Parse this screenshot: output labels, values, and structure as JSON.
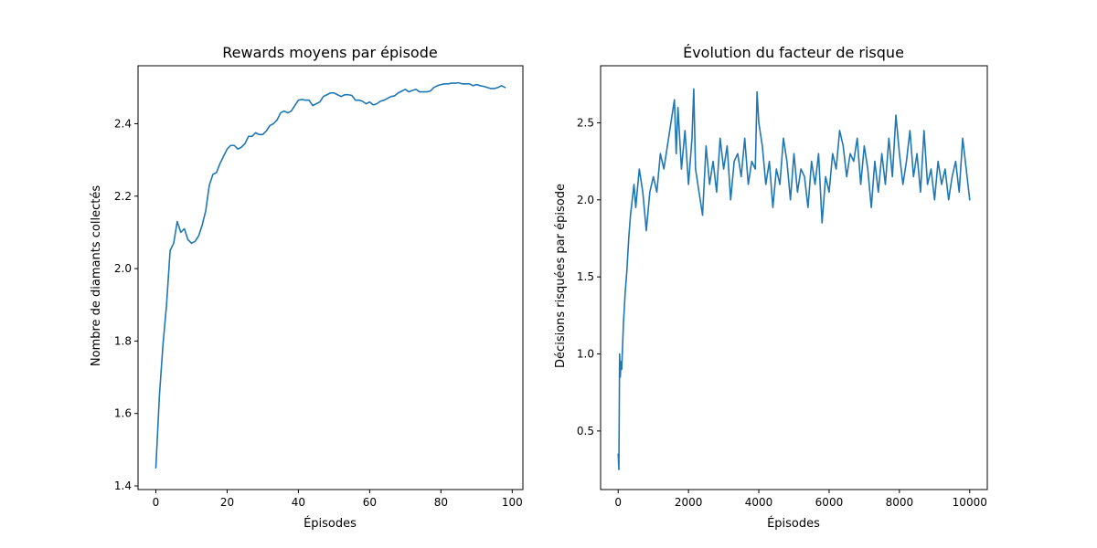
{
  "chart_data": [
    {
      "type": "line",
      "title": "Rewards moyens par épisode",
      "xlabel": "Épisodes",
      "ylabel": "Nombre de diamants collectés",
      "xlim": [
        -5,
        103
      ],
      "ylim": [
        1.39,
        2.56
      ],
      "xticks": [
        0,
        20,
        40,
        60,
        80,
        100
      ],
      "yticks": [
        1.4,
        1.6,
        1.8,
        2.0,
        2.2,
        2.4
      ],
      "ytick_labels": [
        "1.4",
        "1.6",
        "1.8",
        "2.0",
        "2.2",
        "2.4"
      ],
      "grid": false,
      "color": "#1f77b4",
      "series": [
        {
          "x": [
            0,
            1,
            2,
            3,
            4,
            5,
            6,
            7,
            8,
            9,
            10,
            11,
            12,
            13,
            14,
            15,
            16,
            17,
            18,
            19,
            20,
            21,
            22,
            23,
            24,
            25,
            26,
            27,
            28,
            29,
            30,
            31,
            32,
            33,
            34,
            35,
            36,
            37,
            38,
            39,
            40,
            41,
            42,
            43,
            44,
            45,
            46,
            47,
            48,
            49,
            50,
            51,
            52,
            53,
            54,
            55,
            56,
            57,
            58,
            59,
            60,
            61,
            62,
            63,
            64,
            65,
            66,
            67,
            68,
            69,
            70,
            71,
            72,
            73,
            74,
            75,
            76,
            77,
            78,
            79,
            80,
            81,
            82,
            83,
            84,
            85,
            86,
            87,
            88,
            89,
            90,
            91,
            92,
            93,
            94,
            95,
            96,
            97,
            98
          ],
          "y": [
            1.45,
            1.65,
            1.79,
            1.9,
            2.05,
            2.07,
            2.13,
            2.1,
            2.11,
            2.08,
            2.07,
            2.075,
            2.09,
            2.12,
            2.16,
            2.23,
            2.26,
            2.265,
            2.29,
            2.31,
            2.33,
            2.34,
            2.34,
            2.33,
            2.335,
            2.345,
            2.365,
            2.365,
            2.375,
            2.37,
            2.37,
            2.38,
            2.395,
            2.4,
            2.41,
            2.43,
            2.435,
            2.43,
            2.435,
            2.45,
            2.465,
            2.467,
            2.465,
            2.465,
            2.45,
            2.455,
            2.46,
            2.475,
            2.48,
            2.485,
            2.485,
            2.48,
            2.475,
            2.48,
            2.48,
            2.478,
            2.465,
            2.465,
            2.462,
            2.455,
            2.46,
            2.452,
            2.455,
            2.462,
            2.465,
            2.47,
            2.475,
            2.477,
            2.485,
            2.49,
            2.495,
            2.488,
            2.492,
            2.495,
            2.488,
            2.488,
            2.488,
            2.49,
            2.5,
            2.505,
            2.508,
            2.51,
            2.51,
            2.512,
            2.512,
            2.513,
            2.51,
            2.51,
            2.51,
            2.505,
            2.508,
            2.505,
            2.503,
            2.5,
            2.497,
            2.497,
            2.5,
            2.505,
            2.5
          ]
        }
      ]
    },
    {
      "type": "line",
      "title": "Évolution du facteur de risque",
      "xlabel": "Épisodes",
      "ylabel": "Décisions risquées par épisode",
      "xlim": [
        -500,
        10500
      ],
      "ylim": [
        0.12,
        2.87
      ],
      "xticks": [
        0,
        2000,
        4000,
        6000,
        8000,
        10000
      ],
      "yticks": [
        0.5,
        1.0,
        1.5,
        2.0,
        2.5
      ],
      "ytick_labels": [
        "0.5",
        "1.0",
        "1.5",
        "2.0",
        "2.5"
      ],
      "grid": false,
      "color": "#1f77b4",
      "series": [
        {
          "x": [
            0,
            20,
            40,
            60,
            80,
            100,
            150,
            200,
            250,
            300,
            350,
            400,
            450,
            500,
            600,
            700,
            800,
            900,
            1000,
            1100,
            1200,
            1300,
            1400,
            1500,
            1600,
            1650,
            1700,
            1800,
            1900,
            2000,
            2100,
            2150,
            2200,
            2300,
            2400,
            2500,
            2600,
            2700,
            2800,
            2900,
            3000,
            3100,
            3200,
            3300,
            3400,
            3500,
            3600,
            3700,
            3800,
            3900,
            3950,
            4000,
            4100,
            4200,
            4300,
            4400,
            4500,
            4600,
            4700,
            4800,
            4900,
            5000,
            5100,
            5200,
            5300,
            5400,
            5500,
            5600,
            5700,
            5800,
            5900,
            6000,
            6100,
            6200,
            6300,
            6400,
            6500,
            6600,
            6700,
            6800,
            6900,
            7000,
            7100,
            7200,
            7300,
            7400,
            7500,
            7600,
            7700,
            7800,
            7900,
            8000,
            8100,
            8200,
            8300,
            8400,
            8500,
            8600,
            8700,
            8800,
            8900,
            9000,
            9100,
            9200,
            9300,
            9400,
            9500,
            9600,
            9700,
            9800,
            9900,
            10000
          ],
          "y": [
            0.35,
            0.25,
            1.0,
            0.85,
            0.95,
            0.9,
            1.2,
            1.4,
            1.55,
            1.75,
            1.9,
            2.0,
            2.1,
            1.95,
            2.2,
            2.05,
            1.8,
            2.05,
            2.15,
            2.05,
            2.3,
            2.2,
            2.35,
            2.5,
            2.65,
            2.3,
            2.6,
            2.2,
            2.45,
            2.1,
            2.4,
            2.72,
            2.2,
            2.05,
            1.9,
            2.35,
            2.1,
            2.25,
            2.05,
            2.4,
            2.2,
            2.35,
            2.0,
            2.25,
            2.3,
            2.15,
            2.4,
            2.1,
            2.25,
            2.2,
            2.7,
            2.5,
            2.35,
            2.1,
            2.25,
            1.95,
            2.2,
            2.1,
            2.4,
            2.25,
            2.0,
            2.3,
            2.05,
            2.2,
            2.15,
            1.95,
            2.25,
            2.1,
            2.3,
            1.85,
            2.15,
            2.05,
            2.3,
            2.2,
            2.45,
            2.35,
            2.15,
            2.3,
            2.25,
            2.4,
            2.1,
            2.35,
            2.2,
            1.95,
            2.25,
            2.05,
            2.3,
            2.1,
            2.4,
            2.15,
            2.55,
            2.3,
            2.1,
            2.25,
            2.45,
            2.15,
            2.3,
            2.05,
            2.45,
            2.1,
            2.2,
            2.0,
            2.25,
            2.1,
            2.2,
            2.0,
            2.15,
            2.25,
            2.05,
            2.4,
            2.2,
            2.0
          ]
        }
      ]
    }
  ]
}
